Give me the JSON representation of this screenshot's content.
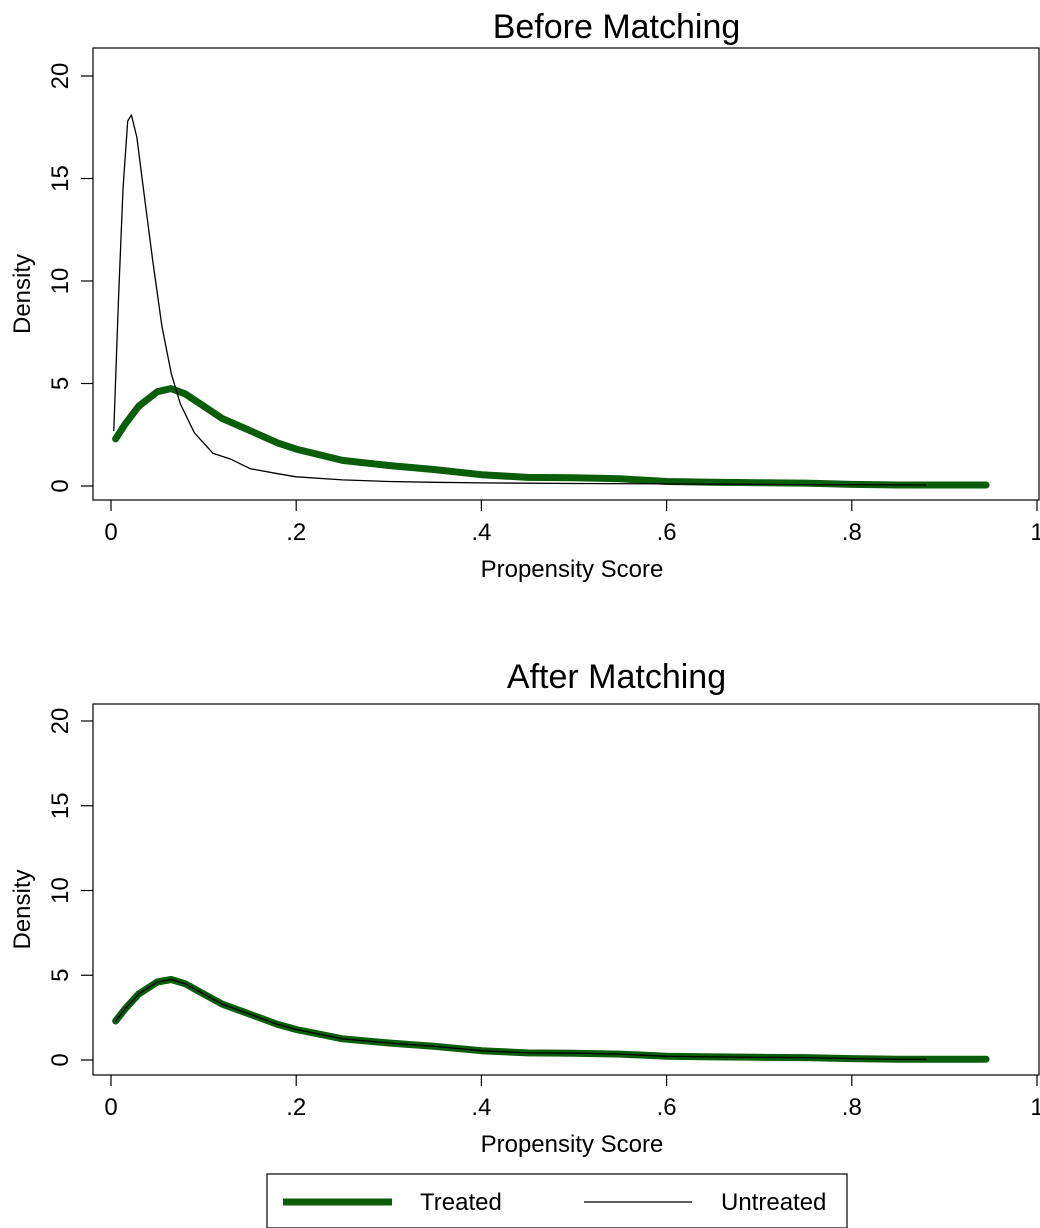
{
  "chart_data": [
    {
      "type": "line",
      "title": "Before Matching",
      "xlabel": "Propensity Score",
      "ylabel": "Density",
      "xlim": [
        0,
        1
      ],
      "ylim": [
        0,
        20
      ],
      "x_ticks": [
        "0",
        ".2",
        ".4",
        ".6",
        ".8",
        "1"
      ],
      "y_ticks": [
        "0",
        "5",
        "10",
        "15",
        "20"
      ],
      "grid": false,
      "series": [
        {
          "name": "Treated",
          "color": "#0a5e0a",
          "x": [
            0.005,
            0.015,
            0.03,
            0.05,
            0.065,
            0.08,
            0.1,
            0.12,
            0.15,
            0.18,
            0.2,
            0.25,
            0.3,
            0.35,
            0.4,
            0.45,
            0.5,
            0.55,
            0.6,
            0.65,
            0.7,
            0.75,
            0.8,
            0.85,
            0.9,
            0.945
          ],
          "y": [
            2.3,
            3.0,
            3.9,
            4.6,
            4.75,
            4.5,
            3.9,
            3.3,
            2.7,
            2.1,
            1.8,
            1.25,
            1.0,
            0.8,
            0.55,
            0.42,
            0.4,
            0.35,
            0.22,
            0.18,
            0.16,
            0.14,
            0.08,
            0.05,
            0.05,
            0.05
          ]
        },
        {
          "name": "Untreated",
          "color": "#000000",
          "x": [
            0.003,
            0.008,
            0.013,
            0.018,
            0.022,
            0.028,
            0.035,
            0.045,
            0.055,
            0.065,
            0.075,
            0.09,
            0.11,
            0.13,
            0.15,
            0.18,
            0.2,
            0.25,
            0.3,
            0.35,
            0.4,
            0.5,
            0.6,
            0.7,
            0.8,
            0.88
          ],
          "y": [
            2.7,
            9.0,
            14.5,
            17.8,
            18.1,
            17.0,
            14.5,
            11.0,
            7.8,
            5.5,
            4.0,
            2.6,
            1.6,
            1.3,
            0.85,
            0.6,
            0.45,
            0.3,
            0.22,
            0.18,
            0.15,
            0.12,
            0.1,
            0.08,
            0.06,
            0.05
          ]
        }
      ]
    },
    {
      "type": "line",
      "title": "After Matching",
      "xlabel": "Propensity Score",
      "ylabel": "Density",
      "xlim": [
        0,
        1
      ],
      "ylim": [
        0,
        20
      ],
      "x_ticks": [
        "0",
        ".2",
        ".4",
        ".6",
        ".8",
        "1"
      ],
      "y_ticks": [
        "0",
        "5",
        "10",
        "15",
        "20"
      ],
      "grid": false,
      "series": [
        {
          "name": "Treated",
          "color": "#0a5e0a",
          "x": [
            0.005,
            0.015,
            0.03,
            0.05,
            0.065,
            0.08,
            0.1,
            0.12,
            0.15,
            0.18,
            0.2,
            0.25,
            0.3,
            0.35,
            0.4,
            0.45,
            0.5,
            0.55,
            0.6,
            0.65,
            0.7,
            0.75,
            0.8,
            0.85,
            0.9,
            0.945
          ],
          "y": [
            2.3,
            3.0,
            3.9,
            4.6,
            4.75,
            4.5,
            3.9,
            3.3,
            2.7,
            2.1,
            1.8,
            1.25,
            1.0,
            0.8,
            0.55,
            0.42,
            0.4,
            0.35,
            0.22,
            0.18,
            0.16,
            0.14,
            0.08,
            0.05,
            0.05,
            0.05
          ]
        },
        {
          "name": "Untreated",
          "color": "#000000",
          "x": [
            0.005,
            0.015,
            0.03,
            0.05,
            0.065,
            0.08,
            0.1,
            0.12,
            0.15,
            0.18,
            0.2,
            0.25,
            0.3,
            0.35,
            0.4,
            0.45,
            0.5,
            0.55,
            0.6,
            0.65,
            0.7,
            0.75,
            0.8,
            0.85,
            0.88
          ],
          "y": [
            2.3,
            3.0,
            3.9,
            4.6,
            4.75,
            4.5,
            3.9,
            3.3,
            2.7,
            2.1,
            1.8,
            1.25,
            1.0,
            0.8,
            0.55,
            0.42,
            0.4,
            0.35,
            0.22,
            0.18,
            0.16,
            0.14,
            0.08,
            0.05,
            0.05
          ]
        }
      ]
    }
  ],
  "legend": {
    "placement": "bottom-center",
    "items": [
      {
        "label": "Treated",
        "color": "#0a5e0a",
        "style": "thick"
      },
      {
        "label": "Untreated",
        "color": "#000000",
        "style": "thin"
      }
    ]
  }
}
